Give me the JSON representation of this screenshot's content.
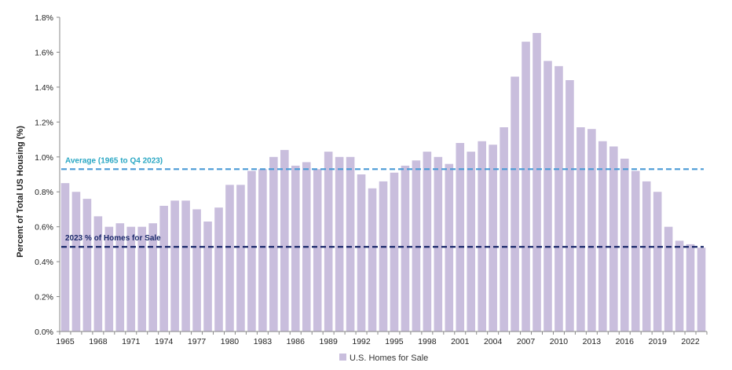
{
  "chart_data": {
    "type": "bar",
    "title": "",
    "xlabel": "",
    "ylabel": "Percent of Total US Housing (%)",
    "ylim": [
      0,
      1.8
    ],
    "yticks": [
      "0.0%",
      "0.2%",
      "0.4%",
      "0.6%",
      "0.8%",
      "1.0%",
      "1.2%",
      "1.4%",
      "1.6%",
      "1.8%"
    ],
    "grid": false,
    "legend_position": "bottom",
    "bar_color": "#c9bedd",
    "categories": [
      1965,
      1966,
      1967,
      1968,
      1969,
      1970,
      1971,
      1972,
      1973,
      1974,
      1975,
      1976,
      1977,
      1978,
      1979,
      1980,
      1981,
      1982,
      1983,
      1984,
      1985,
      1986,
      1987,
      1988,
      1989,
      1990,
      1991,
      1992,
      1993,
      1994,
      1995,
      1996,
      1997,
      1998,
      1999,
      2000,
      2001,
      2002,
      2003,
      2004,
      2005,
      2006,
      2007,
      2008,
      2009,
      2010,
      2011,
      2012,
      2013,
      2014,
      2015,
      2016,
      2017,
      2018,
      2019,
      2020,
      2021,
      2022,
      2023
    ],
    "xtick_labels": [
      "1965",
      "1968",
      "1971",
      "1974",
      "1977",
      "1980",
      "1983",
      "1986",
      "1989",
      "1992",
      "1995",
      "1998",
      "2001",
      "2004",
      "2007",
      "2010",
      "2013",
      "2016",
      "2019",
      "2022"
    ],
    "series": [
      {
        "name": "U.S. Homes for Sale",
        "values": [
          0.85,
          0.8,
          0.76,
          0.66,
          0.6,
          0.62,
          0.6,
          0.6,
          0.62,
          0.72,
          0.75,
          0.75,
          0.7,
          0.63,
          0.71,
          0.84,
          0.84,
          0.92,
          0.93,
          1.0,
          1.04,
          0.95,
          0.97,
          0.93,
          1.03,
          1.0,
          1.0,
          0.9,
          0.82,
          0.86,
          0.91,
          0.95,
          0.98,
          1.03,
          1.0,
          0.96,
          1.08,
          1.03,
          1.09,
          1.07,
          1.17,
          1.46,
          1.66,
          1.71,
          1.55,
          1.52,
          1.44,
          1.17,
          1.16,
          1.09,
          1.06,
          0.99,
          0.92,
          0.86,
          0.8,
          0.6,
          0.52,
          0.5,
          0.48
        ]
      }
    ],
    "reference_lines": [
      {
        "label": "Average (1965 to Q4 2023)",
        "value": 0.93,
        "color": "#4a9ad6",
        "label_color": "#2aa7c4"
      },
      {
        "label": "2023 % of Homes for Sale",
        "value": 0.485,
        "color": "#1b2a6b",
        "label_color": "#1b2a6b"
      }
    ],
    "axis_color": "#888888"
  }
}
